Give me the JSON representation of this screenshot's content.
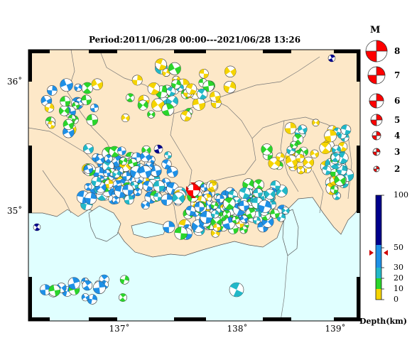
{
  "title": "Period:2011/06/28 00:00---2021/06/28 13:26",
  "lat_labels": [
    "36˚",
    "35˚"
  ],
  "lon_labels": [
    "137˚",
    "138˚",
    "139˚"
  ],
  "magnitude_legend": {
    "title": "M",
    "values": [
      "8",
      "7",
      "6",
      "5",
      "4",
      "3",
      "2"
    ]
  },
  "depth_legend": {
    "title": "Depth(km)",
    "ticks": [
      "100",
      "50",
      "30",
      "20",
      "10",
      "0"
    ],
    "colors": [
      "#f5d400",
      "#2bd52b",
      "#22b8c8",
      "#1e90e6",
      "#00008b"
    ]
  },
  "colors": {
    "land": "#fde8c8",
    "sea": "#e0ffff",
    "mainshock": "#ff0000"
  }
}
